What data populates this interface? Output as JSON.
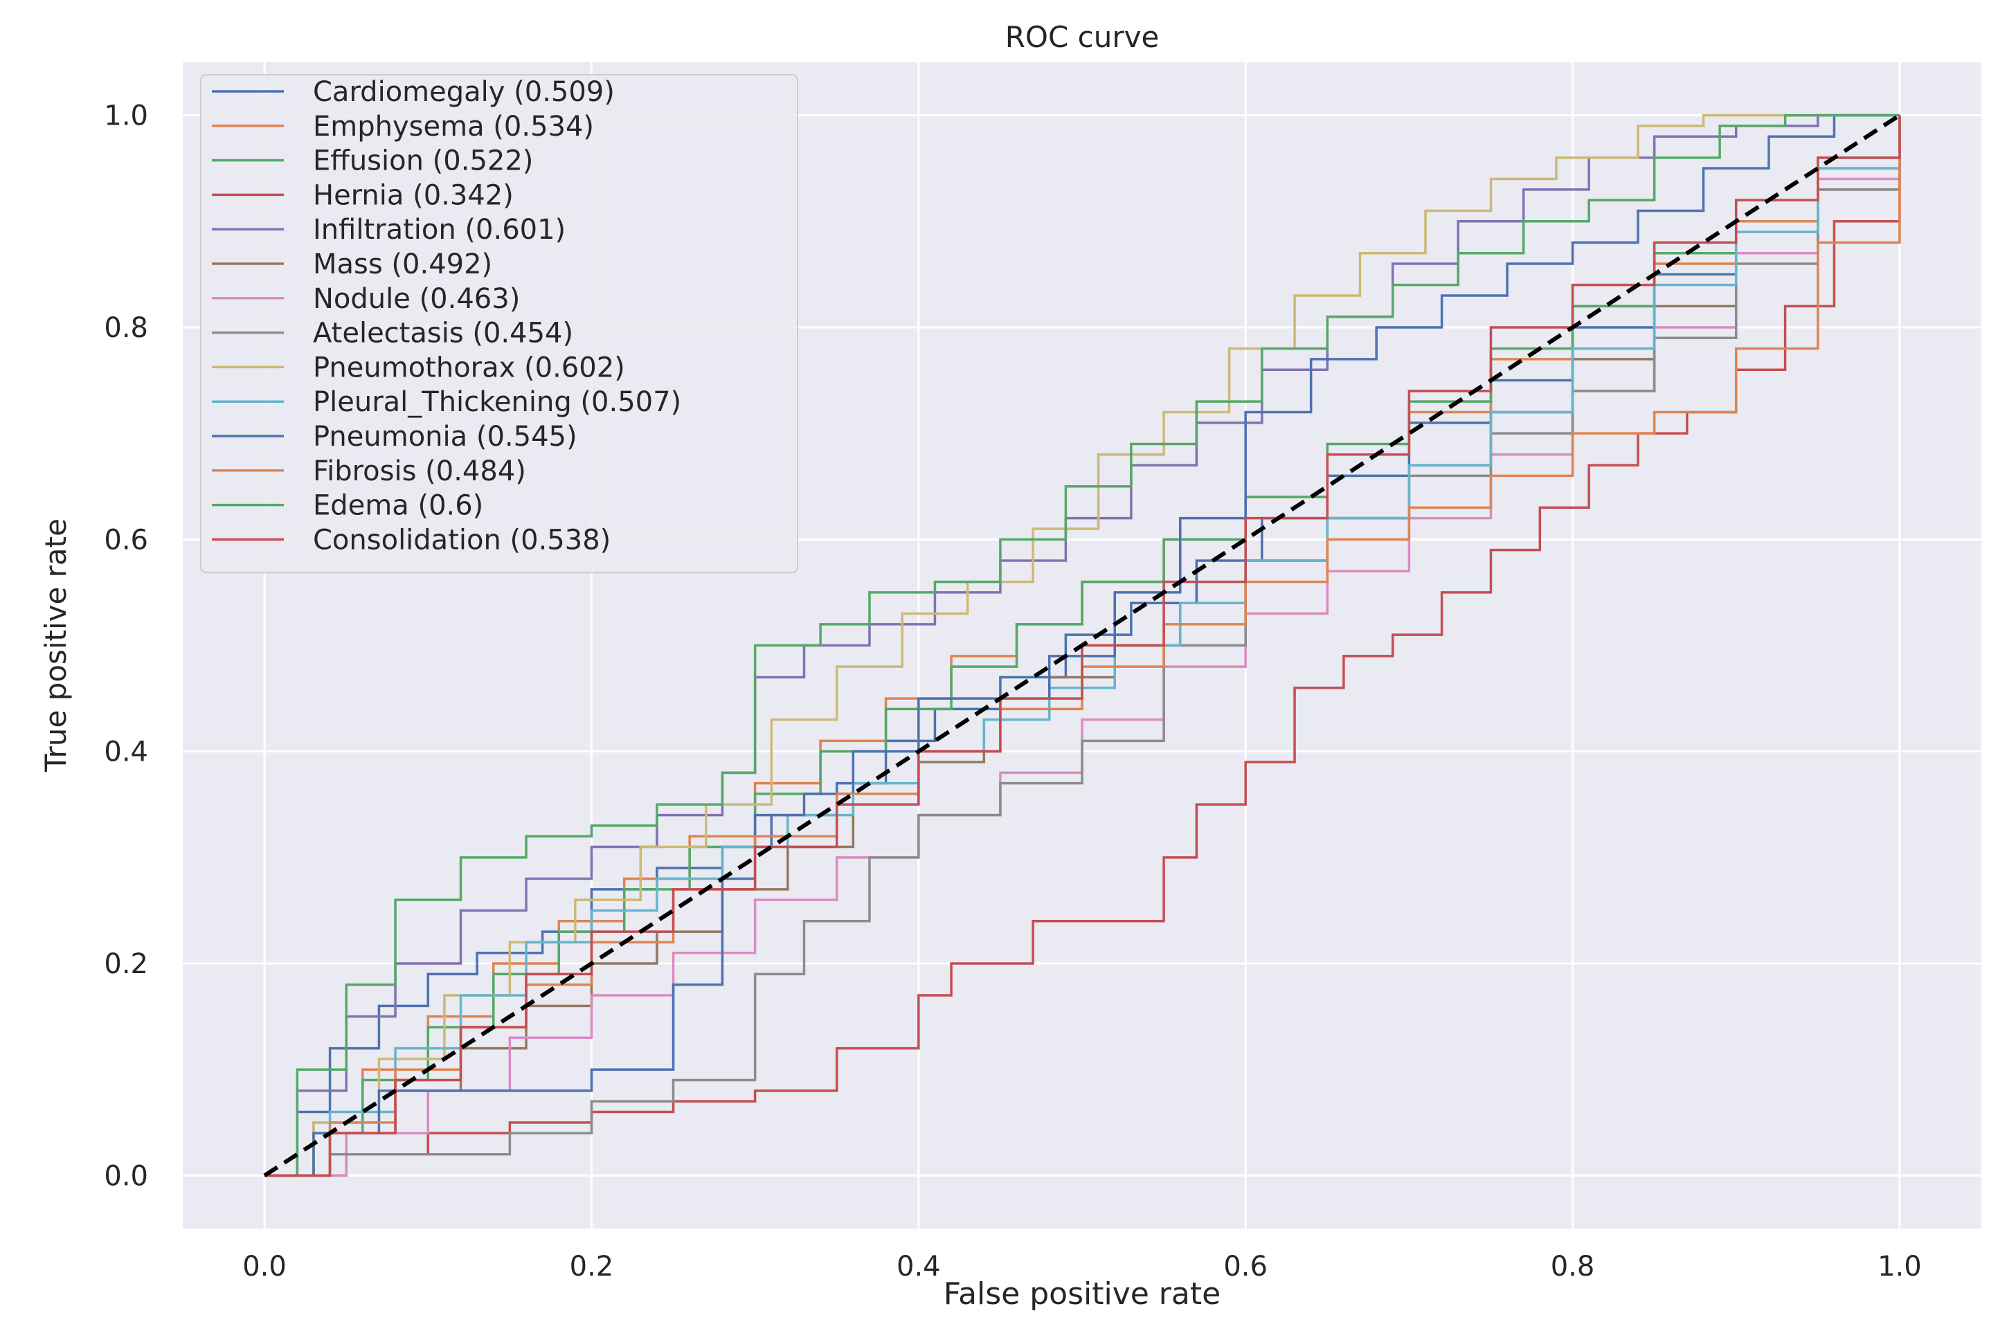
{
  "chart_data": {
    "type": "line",
    "title": "ROC curve",
    "xlabel": "False positive rate",
    "ylabel": "True positive rate",
    "xlim": [
      -0.05,
      1.05
    ],
    "ylim": [
      -0.05,
      1.05
    ],
    "xticks": [
      "0.0",
      "0.2",
      "0.4",
      "0.6",
      "0.8",
      "1.0"
    ],
    "yticks": [
      "0.0",
      "0.2",
      "0.4",
      "0.6",
      "0.8",
      "1.0"
    ],
    "grid": true,
    "legend_position": "top-left",
    "diagonal": {
      "x": [
        0,
        1
      ],
      "y": [
        0,
        1
      ],
      "style": "dashed",
      "color": "#000000"
    },
    "series": [
      {
        "name": "Cardiomegaly",
        "label": "Cardiomegaly (0.509)",
        "auc": 0.509,
        "color": "#4c72b0",
        "x": [
          0,
          0.02,
          0.04,
          0.07,
          0.1,
          0.13,
          0.17,
          0.2,
          0.24,
          0.28,
          0.31,
          0.35,
          0.38,
          0.41,
          0.45,
          0.49,
          0.53,
          0.57,
          0.61,
          0.65,
          0.7,
          0.75,
          0.8,
          0.85,
          0.9,
          0.95,
          1.0
        ],
        "y": [
          0,
          0.06,
          0.12,
          0.16,
          0.19,
          0.21,
          0.23,
          0.27,
          0.29,
          0.31,
          0.34,
          0.37,
          0.41,
          0.44,
          0.47,
          0.51,
          0.54,
          0.58,
          0.62,
          0.66,
          0.71,
          0.75,
          0.8,
          0.85,
          0.9,
          0.96,
          1.0
        ]
      },
      {
        "name": "Emphysema",
        "label": "Emphysema (0.534)",
        "auc": 0.534,
        "color": "#dd8452",
        "x": [
          0,
          0.03,
          0.06,
          0.1,
          0.14,
          0.18,
          0.22,
          0.26,
          0.3,
          0.34,
          0.38,
          0.42,
          0.46,
          0.5,
          0.55,
          0.6,
          0.65,
          0.7,
          0.75,
          0.8,
          0.85,
          0.9,
          0.95,
          1.0
        ],
        "y": [
          0,
          0.05,
          0.1,
          0.15,
          0.2,
          0.24,
          0.28,
          0.32,
          0.37,
          0.41,
          0.45,
          0.49,
          0.52,
          0.56,
          0.6,
          0.64,
          0.68,
          0.72,
          0.77,
          0.82,
          0.86,
          0.9,
          0.95,
          1.0
        ]
      },
      {
        "name": "Effusion",
        "label": "Effusion (0.522)",
        "auc": 0.522,
        "color": "#55a868",
        "x": [
          0,
          0.03,
          0.06,
          0.1,
          0.14,
          0.18,
          0.22,
          0.26,
          0.3,
          0.34,
          0.38,
          0.42,
          0.46,
          0.5,
          0.55,
          0.6,
          0.65,
          0.7,
          0.75,
          0.8,
          0.85,
          0.9,
          0.95,
          1.0
        ],
        "y": [
          0,
          0.04,
          0.09,
          0.14,
          0.19,
          0.23,
          0.27,
          0.31,
          0.36,
          0.4,
          0.44,
          0.48,
          0.52,
          0.56,
          0.6,
          0.64,
          0.69,
          0.73,
          0.78,
          0.82,
          0.87,
          0.92,
          0.96,
          1.0
        ]
      },
      {
        "name": "Hernia",
        "label": "Hernia (0.342)",
        "auc": 0.342,
        "color": "#c44e52",
        "x": [
          0,
          0.05,
          0.1,
          0.15,
          0.2,
          0.25,
          0.3,
          0.35,
          0.4,
          0.42,
          0.47,
          0.53,
          0.55,
          0.57,
          0.6,
          0.63,
          0.66,
          0.69,
          0.72,
          0.75,
          0.78,
          0.81,
          0.84,
          0.87,
          0.9,
          0.93,
          0.96,
          1.0
        ],
        "y": [
          0,
          0.02,
          0.04,
          0.05,
          0.06,
          0.07,
          0.08,
          0.12,
          0.17,
          0.2,
          0.24,
          0.24,
          0.3,
          0.35,
          0.39,
          0.46,
          0.49,
          0.51,
          0.55,
          0.59,
          0.63,
          0.67,
          0.7,
          0.72,
          0.76,
          0.82,
          0.9,
          1.0
        ]
      },
      {
        "name": "Infiltration",
        "label": "Infiltration (0.601)",
        "auc": 0.601,
        "color": "#8172b3",
        "x": [
          0,
          0.02,
          0.05,
          0.08,
          0.12,
          0.16,
          0.2,
          0.24,
          0.28,
          0.3,
          0.33,
          0.37,
          0.41,
          0.45,
          0.49,
          0.53,
          0.57,
          0.61,
          0.65,
          0.69,
          0.73,
          0.77,
          0.81,
          0.85,
          0.9,
          0.95,
          1.0
        ],
        "y": [
          0,
          0.08,
          0.15,
          0.2,
          0.25,
          0.28,
          0.31,
          0.34,
          0.38,
          0.47,
          0.5,
          0.52,
          0.55,
          0.58,
          0.62,
          0.67,
          0.71,
          0.76,
          0.81,
          0.86,
          0.9,
          0.93,
          0.96,
          0.98,
          0.99,
          1.0,
          1.0
        ]
      },
      {
        "name": "Mass",
        "label": "Mass (0.492)",
        "auc": 0.492,
        "color": "#937860",
        "x": [
          0,
          0.04,
          0.08,
          0.12,
          0.16,
          0.2,
          0.24,
          0.28,
          0.32,
          0.36,
          0.4,
          0.44,
          0.48,
          0.52,
          0.56,
          0.6,
          0.65,
          0.7,
          0.75,
          0.8,
          0.85,
          0.9,
          0.95,
          1.0
        ],
        "y": [
          0,
          0.04,
          0.08,
          0.12,
          0.16,
          0.2,
          0.23,
          0.27,
          0.31,
          0.35,
          0.39,
          0.43,
          0.47,
          0.5,
          0.54,
          0.58,
          0.62,
          0.67,
          0.72,
          0.77,
          0.82,
          0.87,
          0.93,
          1.0
        ]
      },
      {
        "name": "Nodule",
        "label": "Nodule (0.463)",
        "auc": 0.463,
        "color": "#da8bc3",
        "x": [
          0,
          0.05,
          0.1,
          0.15,
          0.2,
          0.25,
          0.3,
          0.35,
          0.4,
          0.45,
          0.5,
          0.55,
          0.6,
          0.65,
          0.7,
          0.75,
          0.8,
          0.85,
          0.9,
          0.95,
          1.0
        ],
        "y": [
          0,
          0.04,
          0.08,
          0.13,
          0.17,
          0.21,
          0.26,
          0.3,
          0.34,
          0.38,
          0.43,
          0.48,
          0.53,
          0.57,
          0.62,
          0.68,
          0.74,
          0.8,
          0.87,
          0.94,
          1.0
        ]
      },
      {
        "name": "Atelectasis",
        "label": "Atelectasis (0.454)",
        "auc": 0.454,
        "color": "#8c8c8c",
        "x": [
          0,
          0.04,
          0.1,
          0.15,
          0.2,
          0.25,
          0.3,
          0.33,
          0.37,
          0.4,
          0.45,
          0.5,
          0.55,
          0.6,
          0.65,
          0.7,
          0.75,
          0.8,
          0.85,
          0.9,
          0.95,
          1.0
        ],
        "y": [
          0,
          0.02,
          0.02,
          0.04,
          0.07,
          0.09,
          0.19,
          0.24,
          0.3,
          0.34,
          0.37,
          0.41,
          0.5,
          0.58,
          0.62,
          0.66,
          0.7,
          0.74,
          0.79,
          0.86,
          0.93,
          1.0
        ]
      },
      {
        "name": "Pneumothorax",
        "label": "Pneumothorax (0.602)",
        "auc": 0.602,
        "color": "#ccb974",
        "x": [
          0,
          0.03,
          0.07,
          0.11,
          0.15,
          0.19,
          0.23,
          0.27,
          0.31,
          0.35,
          0.39,
          0.43,
          0.47,
          0.51,
          0.55,
          0.59,
          0.63,
          0.67,
          0.71,
          0.75,
          0.79,
          0.84,
          0.88,
          0.92,
          0.96,
          1.0
        ],
        "y": [
          0,
          0.05,
          0.11,
          0.17,
          0.22,
          0.26,
          0.31,
          0.35,
          0.43,
          0.48,
          0.53,
          0.56,
          0.61,
          0.68,
          0.72,
          0.78,
          0.83,
          0.87,
          0.91,
          0.94,
          0.96,
          0.99,
          1.0,
          1.0,
          1.0,
          1.0
        ]
      },
      {
        "name": "Pleural_Thickening",
        "label": "Pleural_Thickening (0.507)",
        "auc": 0.507,
        "color": "#64b5cd",
        "x": [
          0,
          0.04,
          0.08,
          0.12,
          0.16,
          0.2,
          0.24,
          0.28,
          0.32,
          0.36,
          0.4,
          0.44,
          0.48,
          0.52,
          0.56,
          0.6,
          0.65,
          0.7,
          0.75,
          0.8,
          0.85,
          0.9,
          0.95,
          1.0
        ],
        "y": [
          0,
          0.06,
          0.12,
          0.17,
          0.22,
          0.25,
          0.28,
          0.31,
          0.34,
          0.37,
          0.4,
          0.43,
          0.46,
          0.5,
          0.54,
          0.58,
          0.62,
          0.67,
          0.72,
          0.78,
          0.84,
          0.89,
          0.95,
          1.0
        ]
      },
      {
        "name": "Pneumonia",
        "label": "Pneumonia (0.545)",
        "auc": 0.545,
        "color": "#4c72b0",
        "x": [
          0,
          0.03,
          0.07,
          0.1,
          0.15,
          0.2,
          0.25,
          0.28,
          0.3,
          0.33,
          0.36,
          0.4,
          0.44,
          0.48,
          0.52,
          0.56,
          0.6,
          0.64,
          0.68,
          0.72,
          0.76,
          0.8,
          0.84,
          0.88,
          0.92,
          0.96,
          1.0
        ],
        "y": [
          0,
          0.04,
          0.08,
          0.08,
          0.08,
          0.1,
          0.18,
          0.28,
          0.34,
          0.36,
          0.4,
          0.45,
          0.45,
          0.49,
          0.55,
          0.62,
          0.72,
          0.77,
          0.8,
          0.83,
          0.86,
          0.88,
          0.91,
          0.95,
          0.98,
          1.0,
          1.0
        ]
      },
      {
        "name": "Fibrosis",
        "label": "Fibrosis (0.484)",
        "auc": 0.484,
        "color": "#dd8452",
        "x": [
          0,
          0.04,
          0.08,
          0.12,
          0.16,
          0.2,
          0.25,
          0.3,
          0.35,
          0.4,
          0.45,
          0.5,
          0.55,
          0.6,
          0.65,
          0.7,
          0.75,
          0.8,
          0.85,
          0.9,
          0.95,
          1.0
        ],
        "y": [
          0,
          0.05,
          0.1,
          0.14,
          0.18,
          0.22,
          0.27,
          0.32,
          0.36,
          0.4,
          0.44,
          0.48,
          0.52,
          0.56,
          0.6,
          0.63,
          0.66,
          0.7,
          0.72,
          0.78,
          0.88,
          1.0
        ]
      },
      {
        "name": "Edema",
        "label": "Edema (0.6)",
        "auc": 0.6,
        "color": "#55a868",
        "x": [
          0,
          0.02,
          0.05,
          0.08,
          0.12,
          0.16,
          0.2,
          0.24,
          0.28,
          0.3,
          0.34,
          0.37,
          0.41,
          0.45,
          0.49,
          0.53,
          0.57,
          0.61,
          0.65,
          0.69,
          0.73,
          0.77,
          0.81,
          0.85,
          0.89,
          0.93,
          0.97,
          1.0
        ],
        "y": [
          0,
          0.1,
          0.18,
          0.26,
          0.3,
          0.32,
          0.33,
          0.35,
          0.38,
          0.5,
          0.52,
          0.55,
          0.56,
          0.6,
          0.65,
          0.69,
          0.73,
          0.78,
          0.81,
          0.84,
          0.87,
          0.9,
          0.92,
          0.96,
          0.99,
          1.0,
          1.0,
          1.0
        ]
      },
      {
        "name": "Consolidation",
        "label": "Consolidation (0.538)",
        "auc": 0.538,
        "color": "#c44e52",
        "x": [
          0,
          0.04,
          0.08,
          0.12,
          0.16,
          0.2,
          0.25,
          0.3,
          0.35,
          0.4,
          0.45,
          0.5,
          0.55,
          0.6,
          0.65,
          0.7,
          0.75,
          0.8,
          0.85,
          0.9,
          0.95,
          1.0
        ],
        "y": [
          0,
          0.04,
          0.09,
          0.14,
          0.19,
          0.23,
          0.27,
          0.31,
          0.35,
          0.4,
          0.45,
          0.5,
          0.56,
          0.62,
          0.68,
          0.74,
          0.8,
          0.84,
          0.88,
          0.92,
          0.96,
          1.0
        ]
      }
    ]
  }
}
